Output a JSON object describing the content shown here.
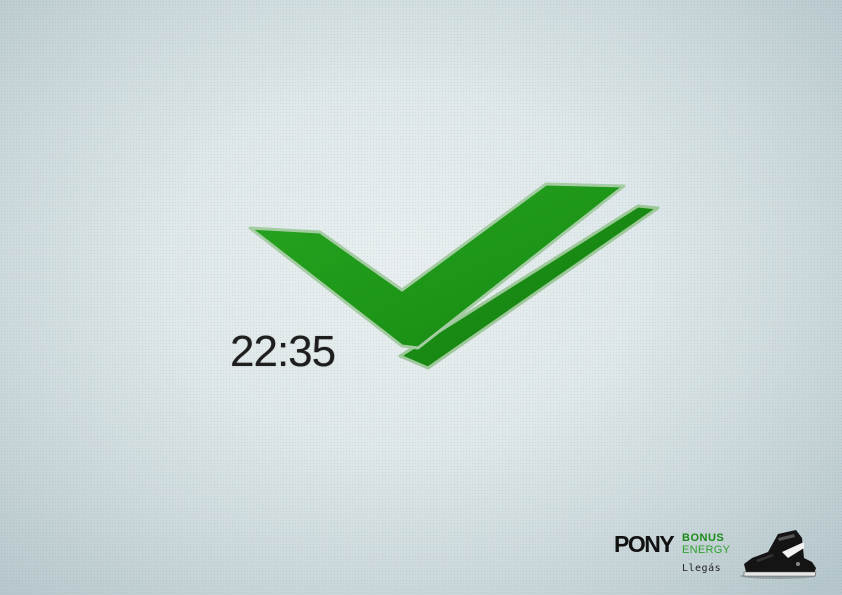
{
  "message": {
    "time": "22:35",
    "status_icon": "double-check-icon",
    "check_color": "#1a9a16",
    "check_edge_color": "#8fbf8c"
  },
  "brand": {
    "logo": "PONY",
    "line1": "BONUS",
    "line2": "ENERGY",
    "caption": "Llegás",
    "product_icon": "sneaker-icon",
    "accent_color": "#1b8a1b"
  }
}
